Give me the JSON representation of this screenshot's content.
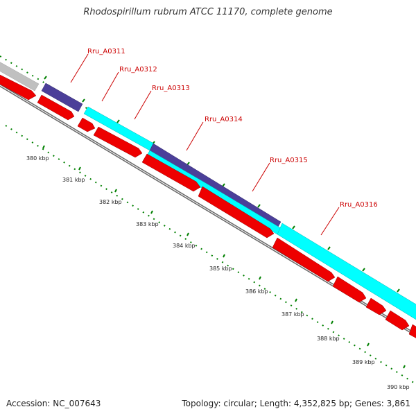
{
  "title": "Rhodospirillum rubrum ATCC 11170, complete genome",
  "footer": {
    "accession": "Accession: NC_007643",
    "summary": "Topology: circular; Length: 4,352,825 bp; Genes: 3,861"
  },
  "scale_labels": [
    "380 kbp",
    "381 kbp",
    "382 kbp",
    "383 kbp",
    "384 kbp",
    "385 kbp",
    "386 kbp",
    "387 kbp",
    "388 kbp",
    "389 kbp",
    "390 kbp"
  ],
  "gene_labels": [
    "Rru_A0311",
    "Rru_A0312",
    "Rru_A0313",
    "Rru_A0314",
    "Rru_A0315",
    "Rru_A0316"
  ],
  "colors": {
    "forward_cds": "#00ffff",
    "highlight_cds": "#4b3f99",
    "reverse_cds": "#ee0000",
    "other_feature": "#c0c0c0",
    "backbone": "#808080",
    "tick": "#008000",
    "label": "#cc0000"
  }
}
